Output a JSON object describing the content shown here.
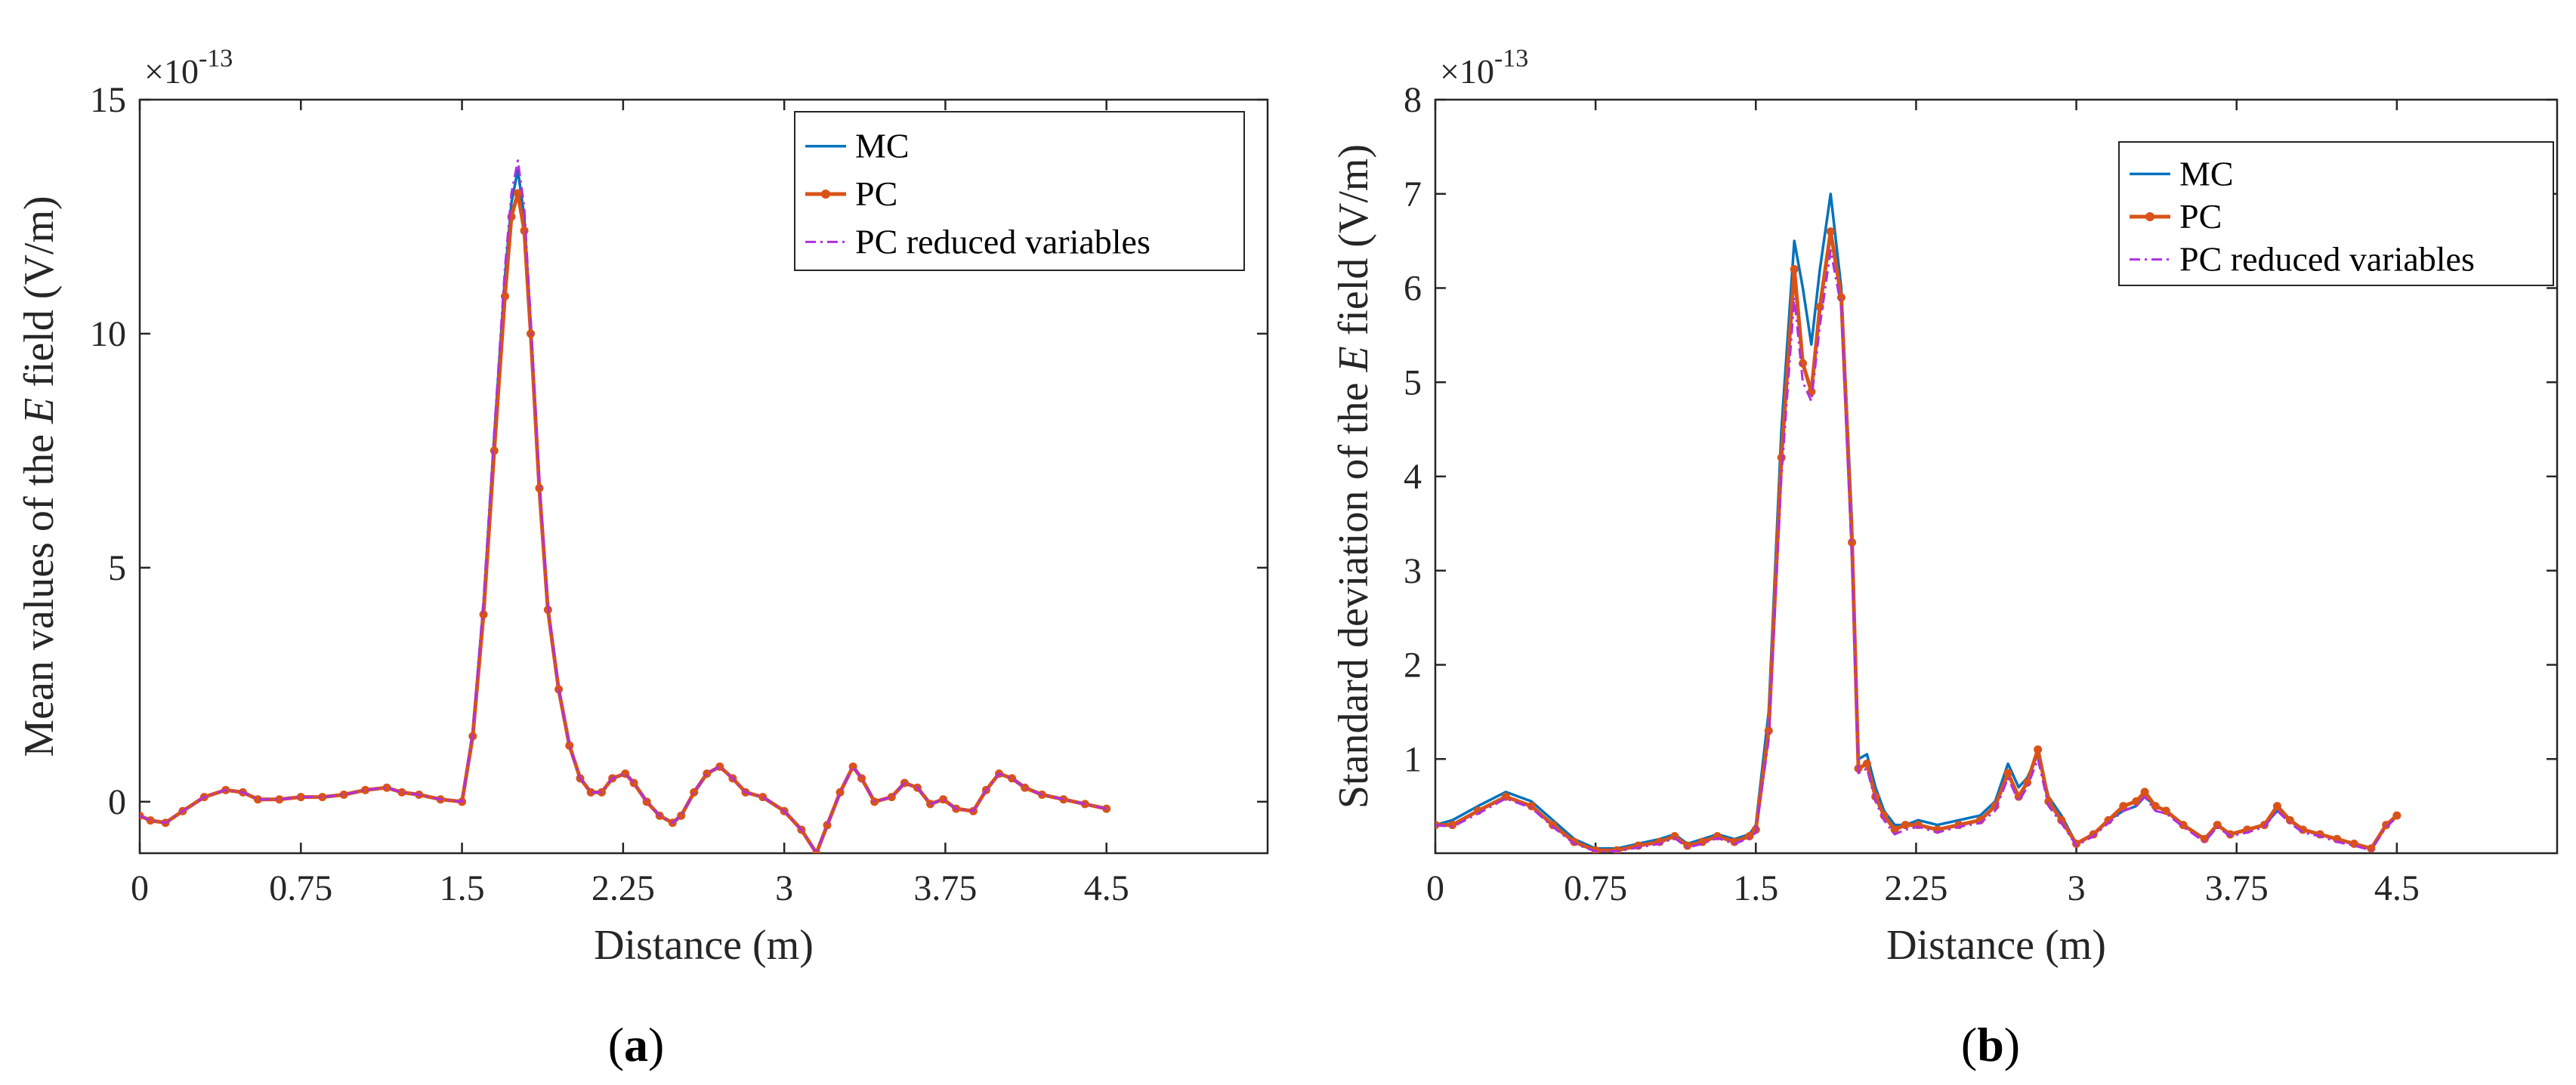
{
  "chart_data": [
    {
      "type": "line",
      "panel": "(a)",
      "xlabel": "Distance (m)",
      "ylabel_parts": [
        "Mean values of the ",
        "E",
        " field (V/m)"
      ],
      "y_exponent": "×10-13",
      "y_exponent_base": "×10",
      "y_exponent_power": "-13",
      "xlim": [
        0,
        5.25
      ],
      "ylim": [
        -1.1,
        15
      ],
      "xticks": [
        0,
        0.75,
        1.5,
        2.25,
        3,
        3.75,
        4.5
      ],
      "xtick_labels": [
        "0",
        "0.75",
        "1.5",
        "2.25",
        "3",
        "3.75",
        "4.5"
      ],
      "yticks": [
        0,
        5,
        10,
        15
      ],
      "ytick_labels": [
        "0",
        "5",
        "10",
        "15"
      ],
      "legend": "top-right",
      "grid": false,
      "series": [
        {
          "name": "MC",
          "color": "#0072BD",
          "style": "solid",
          "x": [
            0,
            0.05,
            0.12,
            0.2,
            0.3,
            0.4,
            0.48,
            0.55,
            0.65,
            0.75,
            0.85,
            0.95,
            1.05,
            1.15,
            1.22,
            1.3,
            1.4,
            1.5,
            1.55,
            1.6,
            1.65,
            1.7,
            1.73,
            1.76,
            1.79,
            1.82,
            1.86,
            1.9,
            1.95,
            2.0,
            2.05,
            2.1,
            2.15,
            2.2,
            2.26,
            2.3,
            2.36,
            2.42,
            2.48,
            2.52,
            2.58,
            2.64,
            2.7,
            2.76,
            2.82,
            2.9,
            3.0,
            3.08,
            3.15,
            3.2,
            3.26,
            3.32,
            3.36,
            3.42,
            3.5,
            3.56,
            3.62,
            3.68,
            3.74,
            3.8,
            3.88,
            3.94,
            4.0,
            4.06,
            4.12,
            4.2,
            4.3,
            4.4,
            4.5
          ],
          "y": [
            -0.3,
            -0.4,
            -0.45,
            -0.2,
            0.1,
            0.25,
            0.2,
            0.05,
            0.05,
            0.1,
            0.1,
            0.15,
            0.25,
            0.3,
            0.2,
            0.15,
            0.05,
            0.0,
            1.5,
            4.2,
            7.8,
            11.2,
            12.8,
            13.5,
            12.5,
            10.2,
            6.8,
            4.2,
            2.4,
            1.2,
            0.5,
            0.2,
            0.2,
            0.5,
            0.6,
            0.4,
            0.0,
            -0.3,
            -0.45,
            -0.3,
            0.2,
            0.6,
            0.75,
            0.5,
            0.2,
            0.1,
            -0.2,
            -0.6,
            -1.1,
            -0.5,
            0.2,
            0.75,
            0.5,
            0.0,
            0.1,
            0.4,
            0.3,
            -0.05,
            0.05,
            -0.15,
            -0.2,
            0.25,
            0.6,
            0.5,
            0.3,
            0.15,
            0.05,
            -0.05,
            -0.15
          ]
        },
        {
          "name": "PC",
          "color": "#D95319",
          "style": "solid-dot",
          "x": [
            0,
            0.05,
            0.12,
            0.2,
            0.3,
            0.4,
            0.48,
            0.55,
            0.65,
            0.75,
            0.85,
            0.95,
            1.05,
            1.15,
            1.22,
            1.3,
            1.4,
            1.5,
            1.55,
            1.6,
            1.65,
            1.7,
            1.73,
            1.76,
            1.79,
            1.82,
            1.86,
            1.9,
            1.95,
            2.0,
            2.05,
            2.1,
            2.15,
            2.2,
            2.26,
            2.3,
            2.36,
            2.42,
            2.48,
            2.52,
            2.58,
            2.64,
            2.7,
            2.76,
            2.82,
            2.9,
            3.0,
            3.08,
            3.15,
            3.2,
            3.26,
            3.32,
            3.36,
            3.42,
            3.5,
            3.56,
            3.62,
            3.68,
            3.74,
            3.8,
            3.88,
            3.94,
            4.0,
            4.06,
            4.12,
            4.2,
            4.3,
            4.4,
            4.5
          ],
          "y": [
            -0.3,
            -0.4,
            -0.45,
            -0.2,
            0.1,
            0.25,
            0.2,
            0.05,
            0.05,
            0.1,
            0.1,
            0.15,
            0.25,
            0.3,
            0.2,
            0.15,
            0.05,
            0.0,
            1.4,
            4.0,
            7.5,
            10.8,
            12.5,
            13.0,
            12.2,
            10.0,
            6.7,
            4.1,
            2.4,
            1.2,
            0.5,
            0.2,
            0.2,
            0.5,
            0.6,
            0.4,
            0.0,
            -0.3,
            -0.45,
            -0.3,
            0.2,
            0.6,
            0.75,
            0.5,
            0.2,
            0.1,
            -0.2,
            -0.6,
            -1.1,
            -0.5,
            0.2,
            0.75,
            0.5,
            0.0,
            0.1,
            0.4,
            0.3,
            -0.05,
            0.05,
            -0.15,
            -0.2,
            0.25,
            0.6,
            0.5,
            0.3,
            0.15,
            0.05,
            -0.05,
            -0.15
          ]
        },
        {
          "name": "PC reduced variables",
          "color": "#B030E0",
          "style": "dashdot",
          "x": [
            0,
            0.05,
            0.12,
            0.2,
            0.3,
            0.4,
            0.48,
            0.55,
            0.65,
            0.75,
            0.85,
            0.95,
            1.05,
            1.15,
            1.22,
            1.3,
            1.4,
            1.5,
            1.55,
            1.6,
            1.65,
            1.7,
            1.73,
            1.76,
            1.79,
            1.82,
            1.86,
            1.9,
            1.95,
            2.0,
            2.05,
            2.1,
            2.15,
            2.2,
            2.26,
            2.3,
            2.36,
            2.42,
            2.48,
            2.52,
            2.58,
            2.64,
            2.7,
            2.76,
            2.82,
            2.9,
            3.0,
            3.08,
            3.15,
            3.2,
            3.26,
            3.32,
            3.36,
            3.42,
            3.5,
            3.56,
            3.62,
            3.68,
            3.74,
            3.8,
            3.88,
            3.94,
            4.0,
            4.06,
            4.12,
            4.2,
            4.3,
            4.4,
            4.5
          ],
          "y": [
            -0.3,
            -0.4,
            -0.45,
            -0.2,
            0.1,
            0.25,
            0.2,
            0.05,
            0.05,
            0.1,
            0.1,
            0.15,
            0.25,
            0.3,
            0.2,
            0.15,
            0.05,
            0.0,
            1.5,
            4.3,
            7.9,
            11.4,
            13.0,
            13.7,
            12.7,
            10.3,
            6.9,
            4.2,
            2.4,
            1.2,
            0.5,
            0.2,
            0.2,
            0.5,
            0.6,
            0.4,
            0.0,
            -0.3,
            -0.45,
            -0.3,
            0.2,
            0.6,
            0.75,
            0.5,
            0.2,
            0.1,
            -0.2,
            -0.6,
            -1.1,
            -0.5,
            0.2,
            0.75,
            0.5,
            0.0,
            0.1,
            0.4,
            0.3,
            -0.05,
            0.05,
            -0.15,
            -0.2,
            0.25,
            0.6,
            0.5,
            0.3,
            0.15,
            0.05,
            -0.05,
            -0.15
          ]
        }
      ]
    },
    {
      "type": "line",
      "panel": "(b)",
      "xlabel": "Distance (m)",
      "ylabel_parts": [
        "Standard deviation of the ",
        "E",
        " field (V/m)"
      ],
      "y_exponent": "×10-13",
      "y_exponent_base": "×10",
      "y_exponent_power": "-13",
      "xlim": [
        0,
        5.25
      ],
      "ylim": [
        0,
        8
      ],
      "xticks": [
        0,
        0.75,
        1.5,
        2.25,
        3,
        3.75,
        4.5
      ],
      "xtick_labels": [
        "0",
        "0.75",
        "1.5",
        "2.25",
        "3",
        "3.75",
        "4.5"
      ],
      "yticks": [
        1,
        2,
        3,
        4,
        5,
        6,
        7,
        8
      ],
      "ytick_labels": [
        "1",
        "2",
        "3",
        "4",
        "5",
        "6",
        "7",
        "8"
      ],
      "legend": "top-right",
      "grid": false,
      "series": [
        {
          "name": "MC",
          "color": "#0072BD",
          "style": "solid",
          "x": [
            0,
            0.08,
            0.2,
            0.33,
            0.45,
            0.55,
            0.65,
            0.75,
            0.85,
            0.95,
            1.05,
            1.12,
            1.18,
            1.25,
            1.32,
            1.4,
            1.47,
            1.5,
            1.56,
            1.62,
            1.68,
            1.72,
            1.76,
            1.8,
            1.85,
            1.9,
            1.95,
            1.98,
            2.02,
            2.06,
            2.1,
            2.15,
            2.2,
            2.26,
            2.35,
            2.45,
            2.55,
            2.62,
            2.68,
            2.73,
            2.77,
            2.82,
            2.87,
            2.93,
            3.0,
            3.08,
            3.15,
            3.22,
            3.28,
            3.32,
            3.37,
            3.42,
            3.5,
            3.6,
            3.66,
            3.72,
            3.8,
            3.88,
            3.94,
            4.0,
            4.06,
            4.14,
            4.22,
            4.3,
            4.38,
            4.45,
            4.5
          ],
          "y": [
            0.3,
            0.35,
            0.5,
            0.65,
            0.55,
            0.35,
            0.15,
            0.05,
            0.05,
            0.1,
            0.15,
            0.2,
            0.1,
            0.15,
            0.2,
            0.15,
            0.2,
            0.3,
            1.5,
            4.5,
            6.5,
            6.0,
            5.4,
            6.2,
            7.0,
            6.0,
            3.5,
            1.0,
            1.05,
            0.7,
            0.45,
            0.3,
            0.3,
            0.35,
            0.3,
            0.35,
            0.4,
            0.55,
            0.95,
            0.7,
            0.8,
            1.05,
            0.6,
            0.4,
            0.1,
            0.2,
            0.35,
            0.45,
            0.5,
            0.6,
            0.5,
            0.45,
            0.3,
            0.15,
            0.3,
            0.2,
            0.25,
            0.3,
            0.45,
            0.35,
            0.25,
            0.2,
            0.15,
            0.1,
            0.05,
            0.3,
            0.4
          ]
        },
        {
          "name": "PC",
          "color": "#D95319",
          "style": "solid-dot",
          "x": [
            0,
            0.08,
            0.2,
            0.33,
            0.45,
            0.55,
            0.65,
            0.75,
            0.85,
            0.95,
            1.05,
            1.12,
            1.18,
            1.25,
            1.32,
            1.4,
            1.47,
            1.5,
            1.56,
            1.62,
            1.68,
            1.72,
            1.76,
            1.8,
            1.85,
            1.9,
            1.95,
            1.98,
            2.02,
            2.06,
            2.1,
            2.15,
            2.2,
            2.26,
            2.35,
            2.45,
            2.55,
            2.62,
            2.68,
            2.73,
            2.77,
            2.82,
            2.87,
            2.93,
            3.0,
            3.08,
            3.15,
            3.22,
            3.28,
            3.32,
            3.37,
            3.42,
            3.5,
            3.6,
            3.66,
            3.72,
            3.8,
            3.88,
            3.94,
            4.0,
            4.06,
            4.14,
            4.22,
            4.3,
            4.38,
            4.45,
            4.5
          ],
          "y": [
            0.3,
            0.3,
            0.45,
            0.6,
            0.5,
            0.3,
            0.12,
            0.03,
            0.03,
            0.08,
            0.12,
            0.18,
            0.08,
            0.12,
            0.18,
            0.12,
            0.18,
            0.25,
            1.3,
            4.2,
            6.2,
            5.2,
            4.9,
            5.8,
            6.6,
            5.9,
            3.3,
            0.9,
            0.95,
            0.6,
            0.4,
            0.25,
            0.3,
            0.3,
            0.25,
            0.3,
            0.35,
            0.5,
            0.85,
            0.6,
            0.75,
            1.1,
            0.55,
            0.35,
            0.1,
            0.2,
            0.35,
            0.5,
            0.55,
            0.65,
            0.5,
            0.45,
            0.3,
            0.15,
            0.3,
            0.2,
            0.25,
            0.3,
            0.5,
            0.35,
            0.25,
            0.2,
            0.15,
            0.1,
            0.05,
            0.3,
            0.4
          ]
        },
        {
          "name": "PC reduced variables",
          "color": "#B030E0",
          "style": "dashdot",
          "x": [
            0,
            0.08,
            0.2,
            0.33,
            0.45,
            0.55,
            0.65,
            0.75,
            0.85,
            0.95,
            1.05,
            1.12,
            1.18,
            1.25,
            1.32,
            1.4,
            1.47,
            1.5,
            1.56,
            1.62,
            1.68,
            1.72,
            1.76,
            1.8,
            1.85,
            1.9,
            1.95,
            1.98,
            2.02,
            2.06,
            2.1,
            2.15,
            2.2,
            2.26,
            2.35,
            2.45,
            2.55,
            2.62,
            2.68,
            2.73,
            2.77,
            2.82,
            2.87,
            2.93,
            3.0,
            3.08,
            3.15,
            3.22,
            3.28,
            3.32,
            3.37,
            3.42,
            3.5,
            3.6,
            3.66,
            3.72,
            3.8,
            3.88,
            3.94,
            4.0,
            4.06,
            4.14,
            4.22,
            4.3,
            4.38,
            4.45,
            4.5
          ],
          "y": [
            0.3,
            0.28,
            0.42,
            0.58,
            0.48,
            0.28,
            0.1,
            0.02,
            0.02,
            0.06,
            0.1,
            0.16,
            0.06,
            0.1,
            0.16,
            0.1,
            0.16,
            0.22,
            1.2,
            4.0,
            5.9,
            5.0,
            4.8,
            5.6,
            6.4,
            5.8,
            3.1,
            0.85,
            0.9,
            0.55,
            0.35,
            0.2,
            0.25,
            0.28,
            0.22,
            0.28,
            0.32,
            0.45,
            0.8,
            0.55,
            0.7,
            1.0,
            0.5,
            0.32,
            0.08,
            0.18,
            0.32,
            0.45,
            0.5,
            0.6,
            0.45,
            0.42,
            0.28,
            0.12,
            0.28,
            0.18,
            0.22,
            0.28,
            0.45,
            0.32,
            0.22,
            0.18,
            0.12,
            0.08,
            0.03,
            0.28,
            0.38
          ]
        }
      ]
    }
  ]
}
